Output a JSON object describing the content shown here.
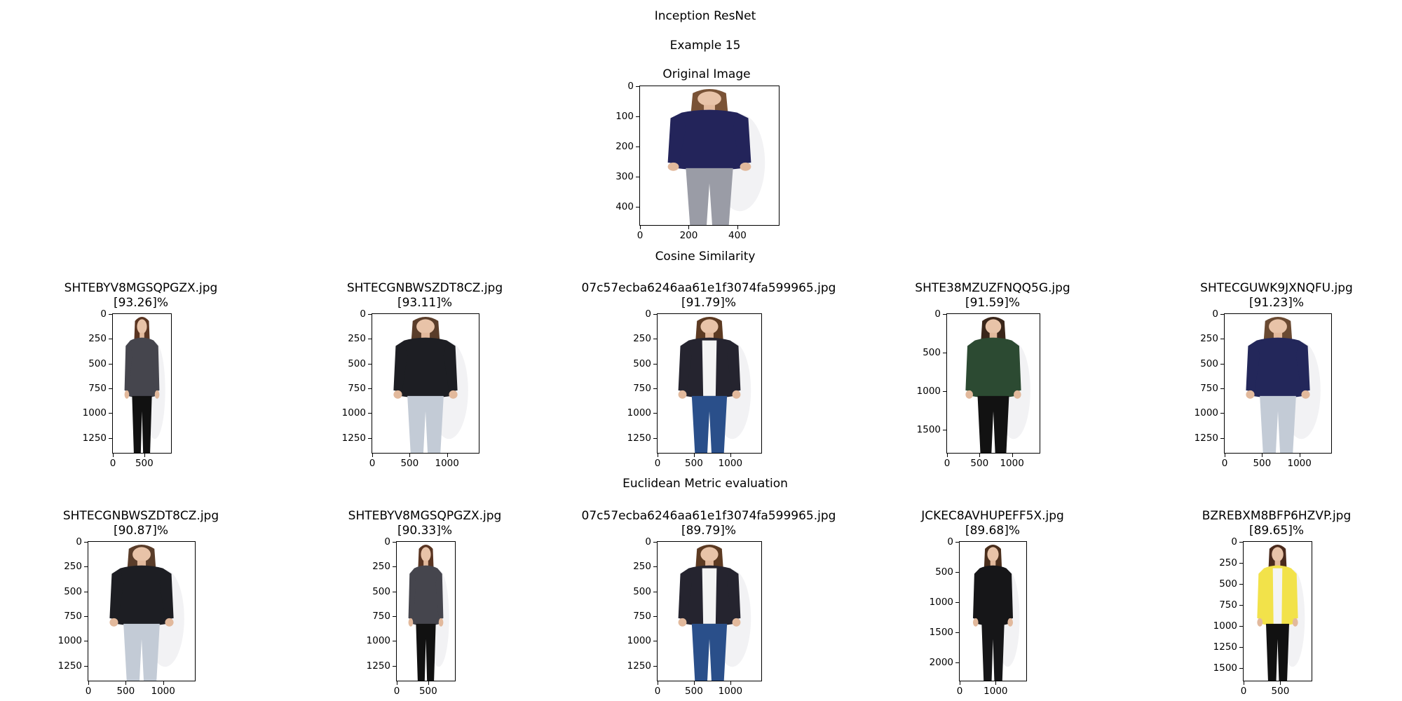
{
  "header": {
    "title": "Inception ResNet",
    "example": "Example 15"
  },
  "original": {
    "title": "Original Image",
    "yticks": [
      "0",
      "100",
      "200",
      "300",
      "400"
    ],
    "xticks": [
      "0",
      "200",
      "400"
    ],
    "shirt_color": "#23245a",
    "pants_color": "#9a9ca6",
    "hair_color": "#7a5336"
  },
  "cosine": {
    "title": "Cosine Similarity",
    "items": [
      {
        "file": "SHTEBYV8MGSQPGZX.jpg",
        "score": "[93.26]%",
        "yticks": [
          "0",
          "250",
          "500",
          "750",
          "1000",
          "1250"
        ],
        "xticks": [
          "0",
          "500"
        ],
        "top_color": "#45454d",
        "bottom_color": "#111111",
        "hair_color": "#5a3522"
      },
      {
        "file": "SHTECGNBWSZDT8CZ.jpg",
        "score": "[93.11]%",
        "yticks": [
          "0",
          "250",
          "500",
          "750",
          "1000",
          "1250"
        ],
        "xticks": [
          "0",
          "500",
          "1000"
        ],
        "top_color": "#1d1e23",
        "bottom_color": "#c3cbd6",
        "hair_color": "#5a3d2a"
      },
      {
        "file": "07c57ecba6246aa61e1f3074fa599965.jpg",
        "score": "[91.79]%",
        "yticks": [
          "0",
          "250",
          "500",
          "750",
          "1000",
          "1250"
        ],
        "xticks": [
          "0",
          "500",
          "1000"
        ],
        "top_color": "#25242f",
        "bottom_color": "#2a4f8a",
        "hair_color": "#5c3a22"
      },
      {
        "file": "SHTE38MZUZFNQQ5G.jpg",
        "score": "[91.59]%",
        "yticks": [
          "0",
          "500",
          "1000",
          "1500"
        ],
        "xticks": [
          "0",
          "500",
          "1000"
        ],
        "top_color": "#2c4a32",
        "bottom_color": "#121212",
        "hair_color": "#3a261a"
      },
      {
        "file": "SHTECGUWK9JXNQFU.jpg",
        "score": "[91.23]%",
        "yticks": [
          "0",
          "250",
          "500",
          "750",
          "1000",
          "1250"
        ],
        "xticks": [
          "0",
          "500",
          "1000"
        ],
        "top_color": "#23275a",
        "bottom_color": "#c3cbd6",
        "hair_color": "#6a4a32"
      }
    ]
  },
  "euclidean": {
    "title": "Euclidean Metric evaluation",
    "items": [
      {
        "file": "SHTECGNBWSZDT8CZ.jpg",
        "score": "[90.87]%",
        "yticks": [
          "0",
          "250",
          "500",
          "750",
          "1000",
          "1250"
        ],
        "xticks": [
          "0",
          "500",
          "1000"
        ],
        "top_color": "#1d1e23",
        "bottom_color": "#c3cbd6",
        "hair_color": "#5a3d2a"
      },
      {
        "file": "SHTEBYV8MGSQPGZX.jpg",
        "score": "[90.33]%",
        "yticks": [
          "0",
          "250",
          "500",
          "750",
          "1000",
          "1250"
        ],
        "xticks": [
          "0",
          "500"
        ],
        "top_color": "#45454d",
        "bottom_color": "#111111",
        "hair_color": "#5a3522"
      },
      {
        "file": "07c57ecba6246aa61e1f3074fa599965.jpg",
        "score": "[89.79]%",
        "yticks": [
          "0",
          "250",
          "500",
          "750",
          "1000",
          "1250"
        ],
        "xticks": [
          "0",
          "500",
          "1000"
        ],
        "top_color": "#25242f",
        "bottom_color": "#2a4f8a",
        "hair_color": "#5c3a22"
      },
      {
        "file": "JCKEC8AVHUPEFF5X.jpg",
        "score": "[89.68]%",
        "yticks": [
          "0",
          "500",
          "1000",
          "1500",
          "2000"
        ],
        "xticks": [
          "0",
          "1000"
        ],
        "top_color": "#161618",
        "bottom_color": "#161618",
        "hair_color": "#4a2e1c"
      },
      {
        "file": "BZREBXM8BFP6HZVP.jpg",
        "score": "[89.65]%",
        "yticks": [
          "0",
          "250",
          "500",
          "750",
          "1000",
          "1250",
          "1500"
        ],
        "xticks": [
          "0",
          "500"
        ],
        "top_color": "#f2e24a",
        "bottom_color": "#111111",
        "hair_color": "#4a2a1c"
      }
    ]
  }
}
